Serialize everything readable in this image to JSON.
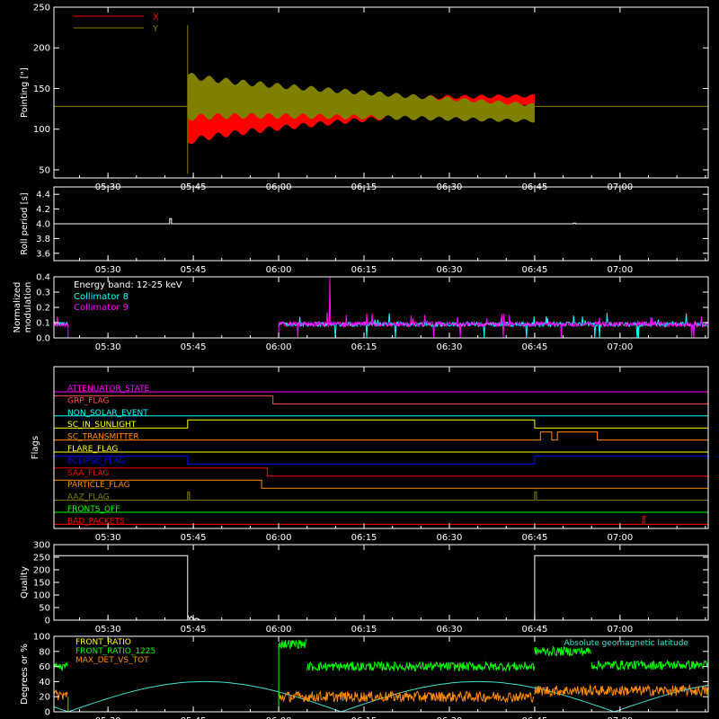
{
  "colors": {
    "background": "#000000",
    "axis": "#ffffff",
    "x_series": "#ff0000",
    "y_series": "#808000",
    "cyan": "#00ffff",
    "magenta": "#ff00ff",
    "green": "#00ff00",
    "orange": "#ff8c00",
    "blue": "#0000ff",
    "yellow": "#ffff00",
    "olive": "#808000",
    "red": "#ff0000",
    "lightcyan": "#40e0d0",
    "salmon": "#ff5050",
    "orangered": "#ff6400"
  },
  "x_tick_labels": [
    "05:30",
    "05:45",
    "06:00",
    "06:15",
    "06:30",
    "06:45",
    "07:00"
  ],
  "chart_data": [
    {
      "type": "line",
      "ylabel": "Pointing [\"]",
      "ylim": [
        40,
        250
      ],
      "yticks": [
        50,
        100,
        150,
        200,
        250
      ],
      "legend": [
        {
          "name": "X",
          "color": "#ff0000"
        },
        {
          "name": "Y",
          "color": "#808000"
        }
      ],
      "series": [
        {
          "name": "X",
          "shape": "oscillating envelope",
          "start": "05:44",
          "end": "06:45",
          "center": [
            115,
            135
          ],
          "amplitude_start": 65,
          "amplitude_end": 12,
          "flat_value_outside": 128
        },
        {
          "name": "Y",
          "shape": "oscillating envelope",
          "start": "05:44",
          "end": "06:45",
          "center": [
            140,
            120
          ],
          "amplitude_start": 55,
          "amplitude_end": 20,
          "flat_value_outside": 128
        }
      ]
    },
    {
      "type": "line",
      "ylabel": "Roll period [s]",
      "ylim": [
        3.5,
        4.5
      ],
      "yticks": [
        3.6,
        3.8,
        4.0,
        4.2,
        4.4
      ],
      "series": [
        {
          "name": "",
          "baseline": 4.0,
          "spikes": [
            {
              "time": "05:41",
              "value": 4.07
            },
            {
              "time": "06:52",
              "value": 4.01
            }
          ]
        }
      ]
    },
    {
      "type": "line",
      "ylabel": "Normalized modulation",
      "ylim": [
        0,
        0.4
      ],
      "yticks": [
        0.0,
        0.1,
        0.2,
        0.3,
        0.4
      ],
      "annotations": [
        "Energy band: 12-25 keV"
      ],
      "legend": [
        {
          "name": "Collimator 8",
          "color": "#00ffff"
        },
        {
          "name": "Collimator 9",
          "color": "#ff00ff"
        }
      ],
      "series": [
        {
          "name": "Collimator 8",
          "segments": [
            [
              "05:20",
              "05:23"
            ],
            [
              "06:00",
              "07:20"
            ]
          ],
          "level": 0.09
        },
        {
          "name": "Collimator 9",
          "segments": [
            [
              "05:20",
              "05:23"
            ],
            [
              "06:00",
              "07:20"
            ]
          ],
          "level": 0.09,
          "peak": {
            "time": "06:09",
            "value": 0.4
          }
        }
      ]
    },
    {
      "type": "line",
      "ylabel": "Flags",
      "flags": [
        {
          "name": "ATTENUATOR_STATE",
          "color": "#ff00ff",
          "steps": []
        },
        {
          "name": "GRP_FLAG",
          "color": "#ff5050",
          "steps": [
            [
              "05:20",
              "05:59",
              1
            ],
            [
              "05:59",
              "07:20",
              0
            ]
          ]
        },
        {
          "name": "NON_SOLAR_EVENT",
          "color": "#00ffff",
          "steps": []
        },
        {
          "name": "SC_IN_SUNLIGHT",
          "color": "#ffff00",
          "steps": [
            [
              "05:20",
              "05:44",
              0
            ],
            [
              "05:44",
              "06:45",
              1
            ],
            [
              "06:45",
              "07:20",
              0
            ]
          ]
        },
        {
          "name": "SC_TRANSMITTER",
          "color": "#ff8c00",
          "steps": [
            [
              "05:20",
              "06:46",
              0
            ],
            [
              "06:46",
              "06:48",
              1
            ],
            [
              "06:48",
              "06:49",
              0
            ],
            [
              "06:49",
              "06:56",
              1
            ],
            [
              "06:56",
              "07:20",
              0
            ]
          ]
        },
        {
          "name": "FLARE_FLAG",
          "color": "#ffff00",
          "steps": []
        },
        {
          "name": "ECLIPSE_FLAG",
          "color": "#0000ff",
          "steps": [
            [
              "05:20",
              "05:44",
              1
            ],
            [
              "05:44",
              "06:45",
              0
            ],
            [
              "06:45",
              "07:20",
              1
            ]
          ]
        },
        {
          "name": "SAA_FLAG",
          "color": "#ff0000",
          "steps": [
            [
              "05:20",
              "05:58",
              1
            ],
            [
              "05:58",
              "07:20",
              0
            ]
          ]
        },
        {
          "name": "PARTICLE_FLAG",
          "color": "#ff8c00",
          "steps": [
            [
              "05:20",
              "05:57",
              1
            ],
            [
              "05:57",
              "07:20",
              0
            ]
          ]
        },
        {
          "name": "AAZ_FLAG",
          "color": "#808000",
          "steps": [],
          "spikes": [
            "05:44",
            "06:45"
          ]
        },
        {
          "name": "FRONTS_OFF",
          "color": "#00ff00",
          "steps": []
        },
        {
          "name": "BAD_PACKETS",
          "color": "#ff0000",
          "steps": [],
          "spikes": [
            "07:04"
          ]
        }
      ]
    },
    {
      "type": "line",
      "ylabel": "Quality",
      "ylim": [
        0,
        300
      ],
      "yticks": [
        0,
        50,
        100,
        150,
        200,
        250,
        300
      ],
      "series": [
        {
          "name": "",
          "steps": [
            [
              "05:20",
              "05:44",
              256
            ],
            [
              "05:44",
              "06:45",
              0
            ],
            [
              "06:45",
              "07:20",
              256
            ]
          ]
        }
      ]
    },
    {
      "type": "line",
      "ylabel": "Degrees or %",
      "ylim": [
        0,
        100
      ],
      "yticks": [
        0,
        20,
        40,
        60,
        80,
        100
      ],
      "legend": [
        {
          "name": "FRONT_RATIO",
          "color": "#ffff00"
        },
        {
          "name": "FRONT_RATIO_1225",
          "color": "#00ff00"
        },
        {
          "name": "MAX_DET_VS_TOT",
          "color": "#ff8c00"
        },
        {
          "name": "Absolute geomagnetic latitude",
          "color": "#40e0d0"
        }
      ],
      "series": [
        {
          "name": "FRONT_RATIO_1225",
          "levels": [
            [
              "05:20",
              "05:23",
              60
            ],
            [
              "06:00",
              "06:05",
              90
            ],
            [
              "06:05",
              "06:45",
              60
            ],
            [
              "06:45",
              "06:55",
              80
            ],
            [
              "06:55",
              "07:20",
              62
            ]
          ]
        },
        {
          "name": "MAX_DET_VS_TOT",
          "levels": [
            [
              "05:20",
              "05:23",
              22
            ],
            [
              "06:00",
              "06:45",
              20
            ],
            [
              "06:45",
              "07:20",
              28
            ]
          ]
        },
        {
          "name": "Absolute geomagnetic latitude",
          "note": "slow sinusoid between about 0 and 40"
        }
      ]
    }
  ]
}
